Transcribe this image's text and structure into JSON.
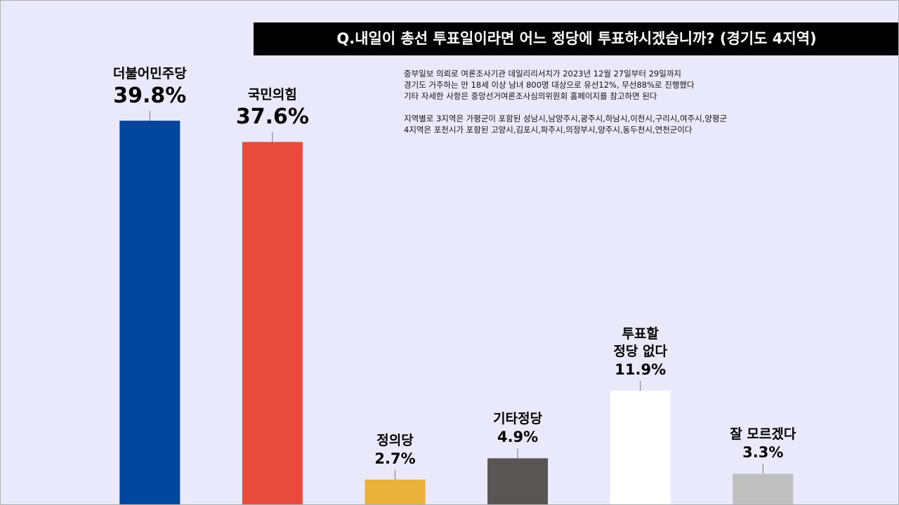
{
  "chart_data": {
    "type": "bar",
    "title": "Q.내일이 총선 투표일이라면 어느 정당에 투표하시겠습니까? (경기도 4지역)",
    "notes": [
      "중부일보 의뢰로 여론조사기관 데일리리서치가 2023년 12월 27일부터 29일까지",
      "경기도 거주하는 만 18세 이상 남녀 800명 대상으로 유선12%, 무선88%로 진행했다",
      "기타 자세한 사항은 중앙선거여론조사심의위원회 홈페이지를 참고하면 된다",
      "지역별로 3지역은 가평군이 포함된 성남시,남양주시,광주시,하남시,이천시,구리시,여주시,양평군",
      "4지역은 포천시가 포함된 고양시,김포시,파주시,의정부시,양주시,동두천시,연천군이다"
    ],
    "categories": [
      "더불어민주당",
      "국민의힘",
      "정의당",
      "기타정당",
      "투표할\n정당 없다",
      "잘 모르겠다"
    ],
    "values": [
      39.8,
      37.6,
      2.7,
      4.9,
      11.9,
      3.3
    ],
    "value_labels": [
      "39.8%",
      "37.6%",
      "2.7%",
      "4.9%",
      "11.9%",
      "3.3%"
    ],
    "colors": [
      "#00469c",
      "#e84a3c",
      "#e8b23a",
      "#595555",
      "#ffffff",
      "#bfbfbf"
    ],
    "ylim": [
      0,
      52.2
    ]
  }
}
